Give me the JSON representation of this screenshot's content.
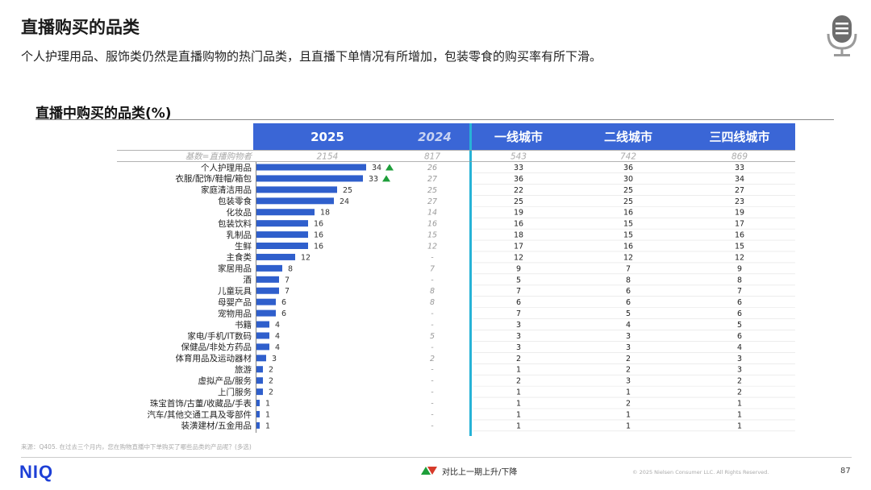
{
  "header": {
    "title": "直播购买的品类",
    "subtitle": "个人护理用品、服饰类仍然是直播购物的热门品类，且直播下单情况有所增加，包装零食的购买率有所下滑。"
  },
  "colors": {
    "accent": "#3a66d6",
    "bar": "#2f5fcc",
    "up": "#1e9e3a",
    "down": "#d63a2a",
    "divider": "#27b3d6"
  },
  "chart_data": {
    "type": "bar",
    "title": "直播中购买的品类(%)",
    "columns": [
      "2025",
      "2024",
      "一线城市",
      "二线城市",
      "三四线城市"
    ],
    "base_label": "基数=直播购物者",
    "base": [
      "2154",
      "817",
      "543",
      "742",
      "869"
    ],
    "categories": [
      "个人护理用品",
      "衣服/配饰/鞋帽/箱包",
      "家庭清洁用品",
      "包装零食",
      "化妆品",
      "包装饮料",
      "乳制品",
      "生鲜",
      "主食类",
      "家居用品",
      "酒",
      "儿童玩具",
      "母婴产品",
      "宠物用品",
      "书籍",
      "家电/手机/IT数码",
      "保健品/非处方药品",
      "体育用品及运动器材",
      "旅游",
      "虚拟产品/服务",
      "上门服务",
      "珠宝首饰/古董/收藏品/手表",
      "汽车/其他交通工具及零部件",
      "装潢建材/五金用品"
    ],
    "values_2025": [
      34,
      33,
      25,
      24,
      18,
      16,
      16,
      16,
      12,
      8,
      7,
      7,
      6,
      6,
      4,
      4,
      4,
      3,
      2,
      2,
      2,
      1,
      1,
      1
    ],
    "values_2024": [
      "26",
      "27",
      "25",
      "27",
      "14",
      "16",
      "15",
      "12",
      "-",
      "7",
      "-",
      "8",
      "8",
      "-",
      "-",
      "5",
      "-",
      "2",
      "-",
      "-",
      "-",
      "-",
      "-",
      "-"
    ],
    "tier1": [
      "33",
      "36",
      "22",
      "25",
      "19",
      "16",
      "18",
      "17",
      "12",
      "9",
      "5",
      "7",
      "6",
      "7",
      "3",
      "3",
      "3",
      "2",
      "1",
      "2",
      "1",
      "1",
      "1",
      "1"
    ],
    "tier2": [
      "36",
      "30",
      "25",
      "25",
      "16",
      "15",
      "15",
      "16",
      "12",
      "7",
      "8",
      "6",
      "6",
      "5",
      "4",
      "3",
      "3",
      "2",
      "2",
      "3",
      "1",
      "2",
      "1",
      "1"
    ],
    "tier3": [
      "33",
      "34",
      "27",
      "23",
      "19",
      "17",
      "16",
      "15",
      "12",
      "9",
      "8",
      "7",
      "6",
      "6",
      "5",
      "6",
      "4",
      "3",
      "3",
      "2",
      "2",
      "1",
      "1",
      "1"
    ],
    "trend": [
      "up",
      "up",
      "",
      "",
      "",
      "",
      "",
      "",
      "",
      "",
      "",
      "",
      "",
      "",
      "",
      "",
      "",
      "",
      "",
      "",
      "",
      "",
      "",
      ""
    ],
    "xlim": [
      0,
      40
    ]
  },
  "footer": {
    "source": "来源：Q405. 在过去三个月内，您在购物直播中下单购买了哪些品类的产品呢？(多选)",
    "logo": "NIQ",
    "legend": "对比上一期上升/下降",
    "copyright": "© 2025 Nielsen Consumer LLC. All Rights Reserved.",
    "page": "87"
  }
}
